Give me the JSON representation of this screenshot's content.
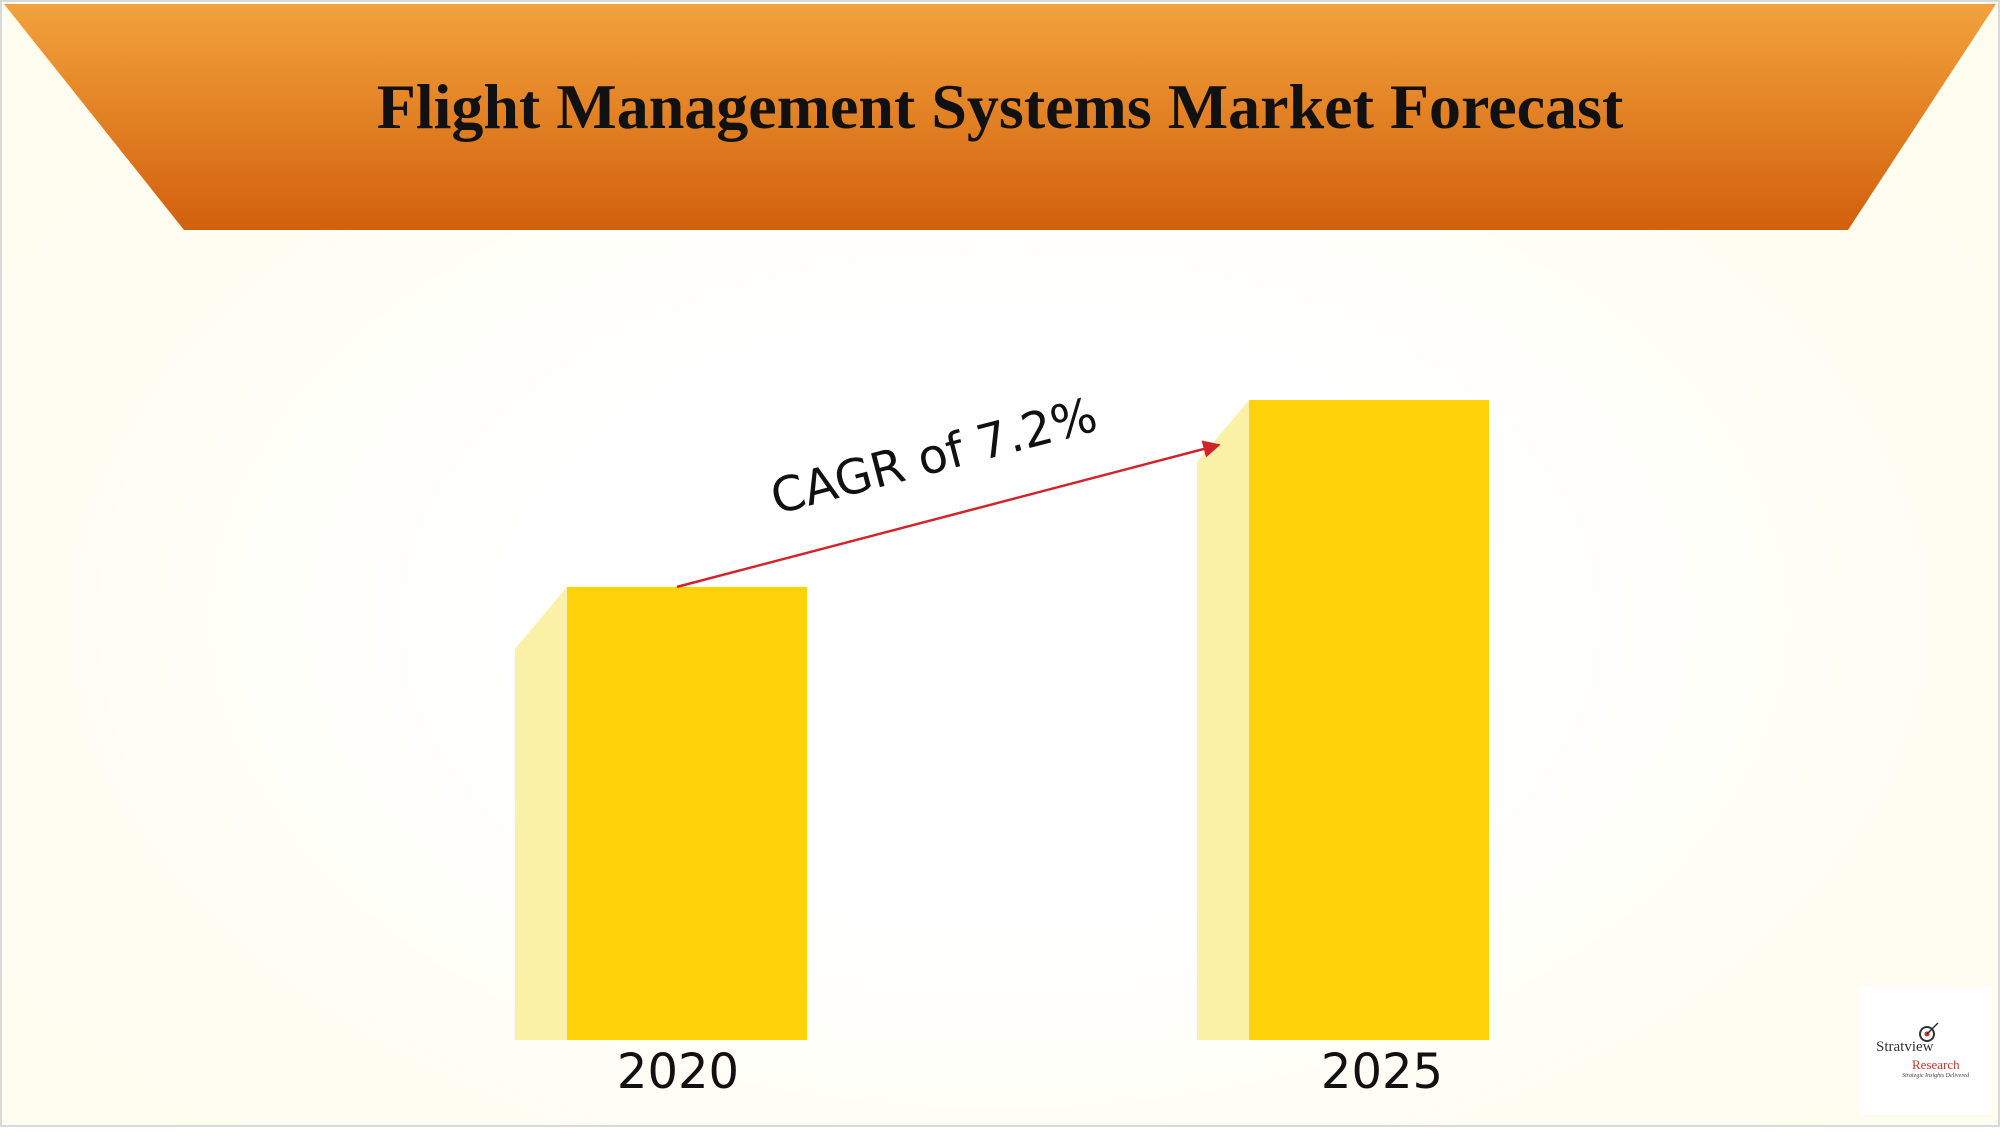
{
  "colors": {
    "banner_top": "#f2a23c",
    "banner_bottom": "#d2600c",
    "bar_front": "#ffd20a",
    "bar_side": "#fbf1a6",
    "arrow": "#d2232a"
  },
  "chart_data": {
    "type": "bar",
    "title": "Flight Management Systems Market Forecast",
    "categories": [
      "2020",
      "2025"
    ],
    "values": [
      0.708,
      1.0
    ],
    "annotation": "CAGR of 7.2%"
  },
  "logo": {
    "name": "Stratview",
    "sub": "Research",
    "tagline": "Strategic Insights Delivered"
  }
}
